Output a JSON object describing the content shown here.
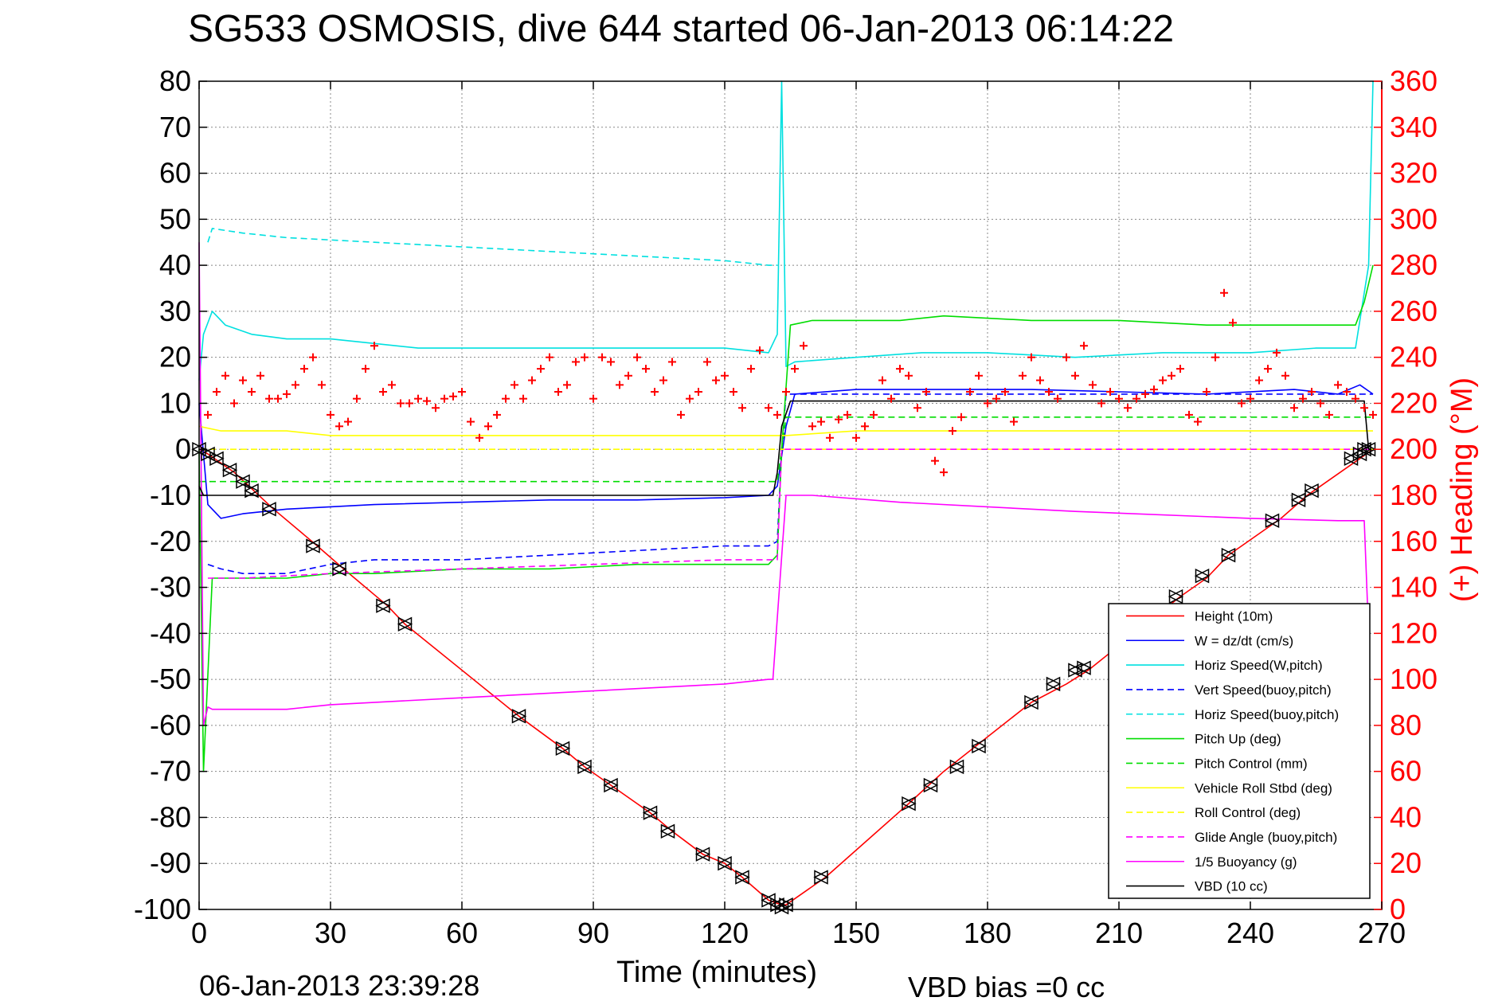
{
  "chart_data": {
    "type": "line",
    "title": "SG533 OSMOSIS, dive 644 started 06-Jan-2013 06:14:22",
    "xlabel": "Time (minutes)",
    "ylabel_left": "",
    "ylabel_right": "(+) Heading (°M)",
    "xlim": [
      0,
      270
    ],
    "ylim_left": [
      -100,
      80
    ],
    "ylim_right": [
      0,
      360
    ],
    "x_ticks": [
      0,
      30,
      60,
      90,
      120,
      150,
      180,
      210,
      240,
      270
    ],
    "y_ticks_left": [
      80,
      70,
      60,
      50,
      40,
      30,
      20,
      10,
      0,
      -10,
      -20,
      -30,
      -40,
      -50,
      -60,
      -70,
      -80,
      -90,
      -100
    ],
    "y_ticks_right": [
      360,
      340,
      320,
      300,
      280,
      260,
      240,
      220,
      200,
      180,
      160,
      140,
      120,
      100,
      80,
      60,
      40,
      20,
      0
    ],
    "grid": true,
    "legend_position": "bottom-right",
    "footer_left": "06-Jan-2013 23:39:28",
    "footer_right": "VBD bias =0 cc",
    "series": [
      {
        "name": "Height (10m)",
        "color": "#ff0000",
        "style": "solid",
        "x": [
          0,
          2,
          8,
          17,
          27,
          33,
          43,
          47,
          73,
          83,
          88,
          94,
          103,
          108,
          115,
          120,
          124,
          130,
          133,
          134,
          143,
          162,
          170,
          178,
          190,
          198,
          203,
          224,
          230,
          235,
          247,
          253,
          265,
          268
        ],
        "y": [
          0,
          -1,
          -5,
          -13,
          -21,
          -26,
          -34,
          -38,
          -58,
          -65,
          -69,
          -73,
          -79,
          -83,
          -88,
          -90,
          -93,
          -98,
          -99,
          -99,
          -93,
          -77,
          -70,
          -64,
          -55,
          -51,
          -48,
          -32,
          -28,
          -23,
          -15,
          -10,
          -2,
          0
        ]
      },
      {
        "name": "W = dz/dt (cm/s)",
        "color": "#0000ff",
        "style": "solid",
        "x": [
          0,
          2,
          5,
          10,
          20,
          30,
          40,
          60,
          80,
          100,
          120,
          130,
          132,
          134,
          136,
          150,
          170,
          190,
          210,
          230,
          250,
          260,
          265,
          268
        ],
        "y": [
          10,
          -12,
          -15,
          -14,
          -13,
          -12.5,
          -12,
          -11.5,
          -11,
          -11,
          -10.5,
          -10,
          -8,
          5,
          12,
          13,
          13,
          13,
          12.5,
          12,
          13,
          12,
          14,
          12
        ]
      },
      {
        "name": "Horiz Speed(W,pitch)",
        "color": "#00e0e0",
        "style": "solid",
        "x": [
          0,
          1,
          3,
          6,
          12,
          20,
          30,
          40,
          50,
          60,
          75,
          90,
          105,
          120,
          130,
          132,
          133,
          134,
          136,
          150,
          165,
          180,
          200,
          220,
          240,
          255,
          264,
          267,
          268
        ],
        "y": [
          15,
          25,
          30,
          27,
          25,
          24,
          24,
          23,
          22,
          22,
          22,
          22,
          22,
          22,
          21,
          25,
          80,
          18,
          19,
          20,
          21,
          21,
          20,
          21,
          21,
          22,
          22,
          40,
          80
        ]
      },
      {
        "name": "Vert Speed(buoy,pitch)",
        "color": "#0000ff",
        "style": "dashed",
        "x": [
          2,
          5,
          10,
          20,
          30,
          40,
          60,
          80,
          100,
          120,
          130,
          132,
          133,
          134,
          150,
          170,
          190,
          210,
          230,
          250,
          268
        ],
        "y": [
          -25,
          -26,
          -27,
          -27,
          -25,
          -24,
          -24,
          -23,
          -22,
          -21,
          -21,
          -20,
          0,
          12,
          12,
          12,
          12,
          12,
          12,
          12,
          12
        ]
      },
      {
        "name": "Horiz Speed(buoy,pitch)",
        "color": "#00e0e0",
        "style": "dashed",
        "x": [
          2,
          3,
          10,
          20,
          30,
          40,
          50,
          60,
          70,
          80,
          90,
          100,
          110,
          120,
          130,
          132
        ],
        "y": [
          45,
          48,
          47,
          46,
          45.5,
          45,
          44.5,
          44,
          43.5,
          43,
          42.5,
          42,
          41.5,
          41,
          40,
          40
        ]
      },
      {
        "name": "Pitch Up (deg)",
        "color": "#00dd00",
        "style": "solid",
        "x": [
          0,
          1,
          3,
          5,
          10,
          20,
          30,
          40,
          60,
          80,
          100,
          120,
          130,
          132,
          133,
          135,
          140,
          160,
          170,
          190,
          210,
          230,
          250,
          264,
          266,
          268
        ],
        "y": [
          0,
          -70,
          -28,
          -28,
          -28,
          -28,
          -27,
          -27,
          -26,
          -26,
          -25,
          -25,
          -25,
          -23,
          0,
          27,
          28,
          28,
          29,
          28,
          28,
          27,
          27,
          27,
          32,
          40
        ]
      },
      {
        "name": "Pitch Control (mm)",
        "color": "#00dd00",
        "style": "dashed",
        "x": [
          0,
          5,
          30,
          60,
          90,
          120,
          132,
          133,
          134,
          150,
          180,
          210,
          240,
          268
        ],
        "y": [
          -7,
          -7,
          -7,
          -7,
          -7,
          -7,
          -7,
          0,
          7,
          7,
          7,
          7,
          7,
          7
        ]
      },
      {
        "name": "Vehicle Roll Stbd (deg)",
        "color": "#ffff00",
        "style": "solid",
        "x": [
          0,
          5,
          10,
          20,
          30,
          40,
          60,
          80,
          100,
          120,
          132,
          134,
          150,
          170,
          190,
          210,
          230,
          250,
          268
        ],
        "y": [
          5,
          4,
          4,
          4,
          3,
          3,
          3,
          3,
          3,
          3,
          3,
          3,
          4,
          4,
          4,
          4,
          4,
          4,
          4
        ]
      },
      {
        "name": "Roll Control (deg)",
        "color": "#ffff00",
        "style": "dashed",
        "x": [
          0,
          30,
          60,
          90,
          120,
          133,
          134,
          160,
          200,
          240,
          268
        ],
        "y": [
          0,
          0,
          0,
          0,
          0,
          0,
          0,
          0,
          0,
          0,
          0
        ]
      },
      {
        "name": "Glide Angle (buoy,pitch)",
        "color": "#ff00ff",
        "style": "dashed",
        "x": [
          2,
          10,
          30,
          60,
          90,
          120,
          132,
          133,
          134,
          160,
          200,
          240,
          268
        ],
        "y": [
          -28,
          -28,
          -27,
          -26,
          -25,
          -24,
          -24,
          0,
          0,
          0,
          0,
          0,
          0
        ]
      },
      {
        "name": "1/5 Buoyancy (g)",
        "color": "#ff00ff",
        "style": "solid",
        "x": [
          0,
          1,
          2,
          3,
          10,
          20,
          30,
          60,
          90,
          120,
          130,
          131,
          134,
          140,
          160,
          200,
          240,
          260,
          266,
          267
        ],
        "y": [
          45,
          -60,
          -56,
          -56.5,
          -56.5,
          -56.5,
          -55.5,
          -54,
          -52.5,
          -51,
          -50,
          -50,
          -10,
          -10,
          -11.5,
          -13.5,
          -15,
          -15.5,
          -15.5,
          -40
        ]
      },
      {
        "name": "VBD (10 cc)",
        "color": "#000000",
        "style": "solid",
        "x": [
          0,
          1,
          2,
          130,
          131,
          132,
          133,
          135,
          150,
          200,
          266,
          267
        ],
        "y": [
          -8,
          -10,
          -10,
          -10,
          -10,
          -5,
          5,
          10.5,
          10.5,
          10.5,
          10.5,
          0
        ]
      }
    ],
    "heading": {
      "name": "(+) Heading (°M)",
      "color": "#ff0000",
      "axis": "right",
      "marker": "+",
      "x": [
        2,
        4,
        6,
        8,
        10,
        12,
        14,
        16,
        18,
        20,
        22,
        24,
        26,
        28,
        30,
        32,
        34,
        36,
        38,
        40,
        42,
        44,
        46,
        48,
        50,
        52,
        54,
        56,
        58,
        60,
        62,
        64,
        66,
        68,
        70,
        72,
        74,
        76,
        78,
        80,
        82,
        84,
        86,
        88,
        90,
        92,
        94,
        96,
        98,
        100,
        102,
        104,
        106,
        108,
        110,
        112,
        114,
        116,
        118,
        120,
        122,
        124,
        126,
        128,
        130,
        132,
        134,
        136,
        138,
        140,
        142,
        144,
        146,
        148,
        150,
        152,
        154,
        156,
        158,
        160,
        162,
        164,
        166,
        168,
        170,
        172,
        174,
        176,
        178,
        180,
        182,
        184,
        186,
        188,
        190,
        192,
        194,
        196,
        198,
        200,
        202,
        204,
        206,
        208,
        210,
        212,
        214,
        216,
        218,
        220,
        222,
        224,
        226,
        228,
        230,
        232,
        234,
        236,
        238,
        240,
        242,
        244,
        246,
        248,
        250,
        252,
        254,
        256,
        258,
        260,
        262,
        264,
        266,
        268
      ],
      "y": [
        215,
        225,
        232,
        220,
        230,
        225,
        232,
        222,
        222,
        224,
        228,
        235,
        240,
        228,
        215,
        210,
        212,
        222,
        235,
        245,
        225,
        228,
        220,
        220,
        222,
        221,
        218,
        222,
        223,
        225,
        212,
        205,
        210,
        215,
        222,
        228,
        222,
        230,
        235,
        240,
        225,
        228,
        238,
        240,
        222,
        240,
        238,
        228,
        232,
        240,
        235,
        225,
        230,
        238,
        215,
        222,
        225,
        238,
        230,
        232,
        225,
        218,
        235,
        243,
        218,
        215,
        225,
        235,
        245,
        210,
        212,
        205,
        213,
        215,
        205,
        210,
        215,
        230,
        222,
        235,
        232,
        218,
        225,
        195,
        190,
        208,
        214,
        225,
        232,
        220,
        222,
        225,
        212,
        232,
        240,
        230,
        225,
        222,
        240,
        232,
        245,
        228,
        220,
        225,
        222,
        218,
        222,
        224,
        226,
        230,
        232,
        235,
        215,
        212,
        225,
        240,
        268,
        255,
        220,
        222,
        230,
        235,
        242,
        232,
        218,
        222,
        225,
        220,
        215,
        228,
        225,
        222,
        218,
        215
      ]
    },
    "markers": {
      "name": "",
      "color": "#000000",
      "style": "open triangles",
      "x": [
        0,
        2,
        4,
        7,
        10,
        12,
        16,
        26,
        32,
        42,
        47,
        73,
        83,
        88,
        94,
        103,
        107,
        115,
        120,
        124,
        130,
        132,
        133,
        134,
        142,
        162,
        167,
        173,
        178,
        190,
        195,
        200,
        202,
        223,
        229,
        235,
        245,
        251,
        254,
        263,
        265,
        266,
        267
      ],
      "y": [
        0,
        -1,
        -2,
        -4.5,
        -7,
        -9,
        -13,
        -21,
        -26,
        -34,
        -38,
        -58,
        -65,
        -69,
        -73,
        -79,
        -83,
        -88,
        -90,
        -93,
        -98,
        -99,
        -99.5,
        -99,
        -93,
        -77,
        -73,
        -69,
        -64.5,
        -55,
        -51,
        -48,
        -47.5,
        -32,
        -27.5,
        -23,
        -15.5,
        -11,
        -9,
        -2,
        -1,
        0,
        0
      ]
    }
  }
}
